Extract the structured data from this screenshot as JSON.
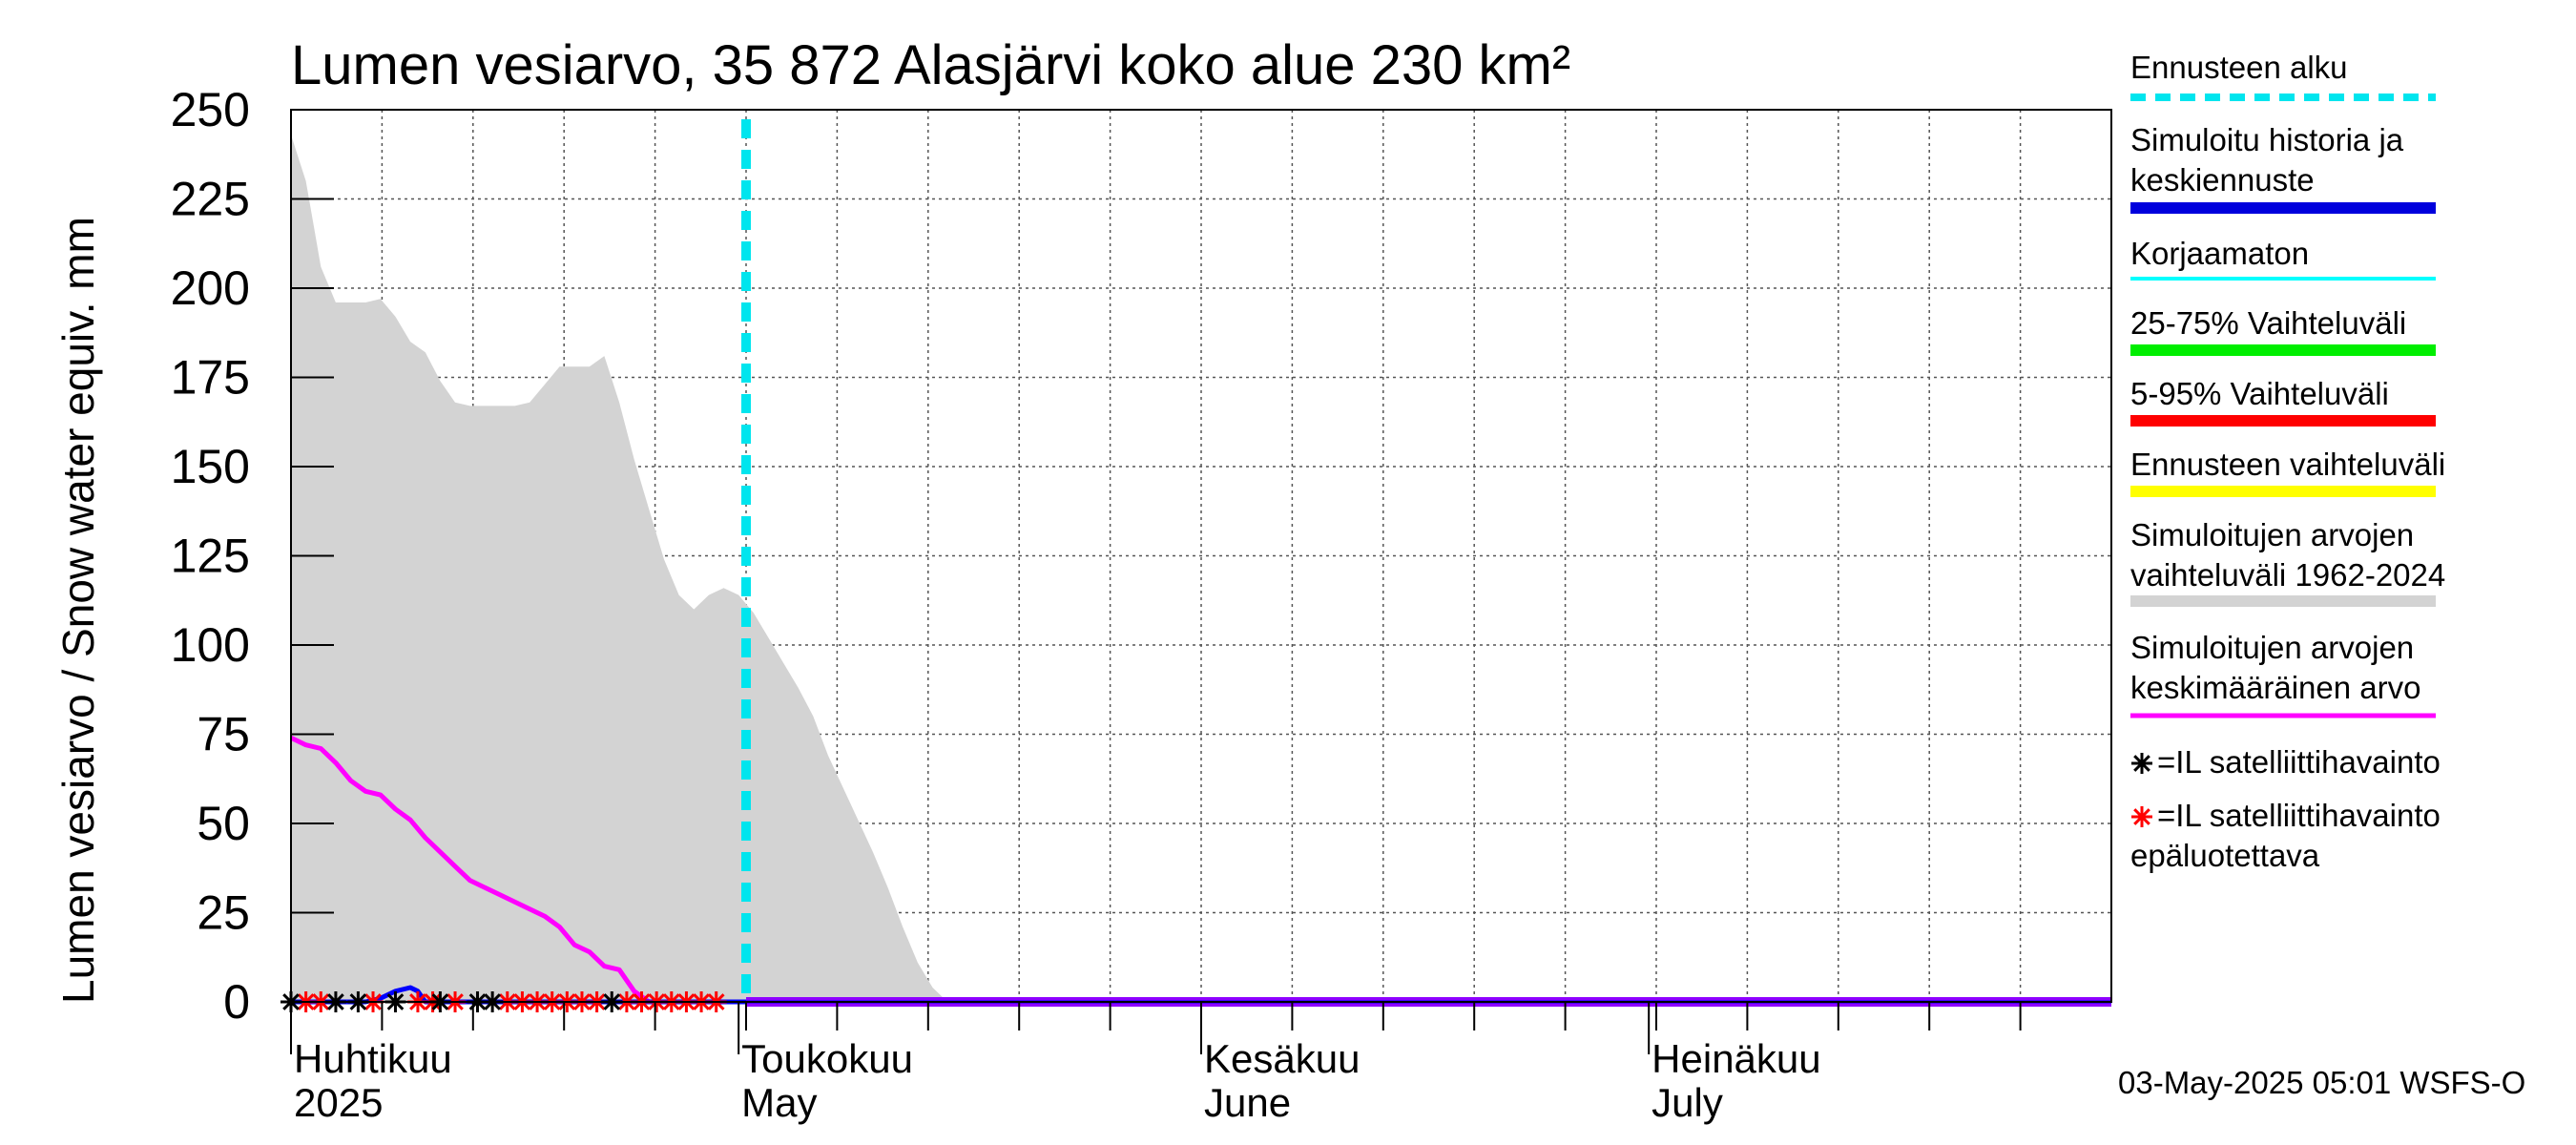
{
  "chart_data": {
    "type": "area",
    "title": "Lumen vesiarvo, 35 872 Alasjärvi koko alue 230 km²",
    "ylabel": "Lumen vesiarvo / Snow water equiv.    mm",
    "ylim": [
      0,
      250
    ],
    "yticks": [
      0,
      25,
      50,
      75,
      100,
      125,
      150,
      175,
      200,
      225,
      250
    ],
    "xlim_days": [
      0,
      122
    ],
    "month_labels": [
      {
        "day": 0,
        "fi": "Huhtikuu",
        "en": "2025"
      },
      {
        "day": 30,
        "fi": "Toukokuu",
        "en": "May"
      },
      {
        "day": 61,
        "fi": "Kesäkuu",
        "en": "June"
      },
      {
        "day": 91,
        "fi": "Heinäkuu",
        "en": "July"
      }
    ],
    "forecast_start_day": 30.5,
    "historical_range_1962_2024": {
      "days": [
        0,
        1,
        1.5,
        2,
        3,
        4,
        5,
        6,
        7,
        8,
        9,
        10,
        11,
        12,
        13,
        14,
        15,
        16,
        17,
        18,
        19,
        20,
        21,
        22,
        23,
        24,
        25,
        26,
        27,
        28,
        29,
        30,
        31,
        32,
        33,
        34,
        35,
        36,
        37,
        38,
        39,
        40,
        41,
        42,
        43,
        44,
        45,
        46
      ],
      "max": [
        243,
        230,
        218,
        206,
        196,
        196,
        196,
        197,
        192,
        185,
        182,
        174,
        168,
        167,
        167,
        167,
        167,
        168,
        173,
        178,
        178,
        178,
        181,
        168,
        152,
        138,
        124,
        114,
        110,
        114,
        116,
        114,
        109,
        102,
        95,
        88,
        80,
        69,
        60,
        51,
        42,
        32,
        21,
        11,
        4,
        0,
        0,
        0
      ],
      "min": [
        0,
        0,
        0,
        0,
        0,
        0,
        0,
        0,
        0,
        0,
        0,
        0,
        0,
        0,
        0,
        0,
        0,
        0,
        0,
        0,
        0,
        0,
        0,
        0,
        0,
        0,
        0,
        0,
        0,
        0,
        0,
        0,
        0,
        0,
        0,
        0,
        0,
        0,
        0,
        0,
        0,
        0,
        0,
        0,
        0,
        0,
        0,
        0
      ]
    },
    "series": [
      {
        "name": "Simuloitujen arvojen keskimääräinen arvo",
        "color": "#ff00ff",
        "days": [
          0,
          1,
          2,
          3,
          4,
          5,
          6,
          7,
          8,
          9,
          10,
          11,
          12,
          13,
          14,
          15,
          16,
          17,
          18,
          19,
          20,
          21,
          22,
          23,
          24,
          25,
          26,
          27,
          28
        ],
        "values": [
          74,
          72,
          71,
          67,
          62,
          59,
          58,
          54,
          51,
          46,
          42,
          38,
          34,
          32,
          30,
          28,
          26,
          24,
          21,
          16,
          14,
          10,
          9,
          3,
          0,
          0,
          0,
          0,
          0
        ]
      },
      {
        "name": "Simuloitu historia ja keskiennuste",
        "color": "#0000ff",
        "days": [
          0,
          5,
          6,
          7,
          8,
          8.5,
          9,
          10,
          30.5,
          122
        ],
        "values": [
          0,
          0,
          1,
          3,
          4,
          3,
          0,
          0,
          0,
          0
        ]
      },
      {
        "name": "Ennusteen vaihteluväli",
        "color": "#8f00ff",
        "days": [
          30.5,
          122
        ],
        "values": [
          0,
          0
        ]
      }
    ],
    "satellite_obs_reliable": {
      "days": [
        0,
        3,
        4.5,
        7,
        10,
        12.5,
        13.5,
        21.5
      ],
      "value": 0
    },
    "satellite_obs_unreliable": {
      "days": [
        1,
        2,
        5.5,
        8.5,
        9.5,
        11,
        14.5,
        15.5,
        16.5,
        17.5,
        18.5,
        19.5,
        20.5,
        22.5,
        23.5,
        24.5,
        25.5,
        26.5,
        27.5,
        28.5
      ],
      "value": 0
    },
    "legend": [
      {
        "label": "Ennusteen alku",
        "color": "#00e5ee",
        "style": "dashed"
      },
      {
        "label": "Simuloitu historia ja keskiennuste",
        "color": "#0000dd",
        "style": "thick"
      },
      {
        "label": "Korjaamaton",
        "color": "#00ffff",
        "style": "thin"
      },
      {
        "label": "25-75% Vaihteluväli",
        "color": "#00ee00",
        "style": "thick"
      },
      {
        "label": "5-95% Vaihteluväli",
        "color": "#ff0000",
        "style": "thick"
      },
      {
        "label": "Ennusteen vaihteluväli",
        "color": "#ffff00",
        "style": "thick"
      },
      {
        "label": "Simuloitujen arvojen vaihteluväli 1962-2024",
        "color": "#d3d3d3",
        "style": "thick"
      },
      {
        "label": "Simuloitujen arvojen keskimääräinen arvo",
        "color": "#ff00ff",
        "style": "medium"
      },
      {
        "label": "=IL satelliittihavainto",
        "color": "#000000",
        "style": "star"
      },
      {
        "label": "=IL satelliittihavainto epäluotettava",
        "color": "#ff0000",
        "style": "star"
      }
    ],
    "footer": "03-May-2025 05:01 WSFS-O"
  }
}
